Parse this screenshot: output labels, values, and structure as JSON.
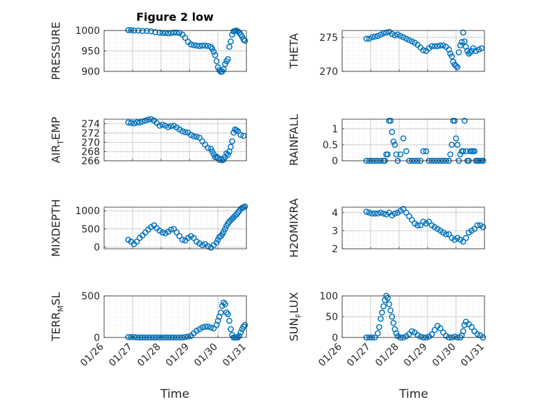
{
  "figure": {
    "title": "Figure 2 low",
    "xlabel": "Time"
  },
  "chart_data": [
    {
      "type": "scatter",
      "ylabel_parts": [
        "PRESSURE"
      ],
      "ylim": [
        900,
        1000
      ],
      "yticks": [
        "900",
        "950",
        "1000"
      ],
      "xlim": [
        0,
        5
      ],
      "xticks": [
        "01/26",
        "01/27",
        "01/28",
        "01/29",
        "01/30",
        "01/31"
      ],
      "show_xticklabels": false,
      "x": [
        0.85,
        0.95,
        1.05,
        1.2,
        1.35,
        1.5,
        1.65,
        1.8,
        1.95,
        2.05,
        2.15,
        2.25,
        2.35,
        2.45,
        2.55,
        2.65,
        2.75,
        2.85,
        2.95,
        3.05,
        3.15,
        3.25,
        3.35,
        3.45,
        3.55,
        3.65,
        3.75,
        3.8,
        3.85,
        3.9,
        3.95,
        4.0,
        4.05,
        4.1,
        4.15,
        4.2,
        4.25,
        4.3,
        4.35,
        4.4,
        4.45,
        4.5,
        4.55,
        4.6,
        4.65,
        4.7,
        4.75,
        4.8,
        4.85,
        4.9,
        4.95
      ],
      "y": [
        1001,
        1001,
        1000,
        1000,
        999,
        999,
        998,
        996,
        995,
        994,
        994,
        993,
        994,
        995,
        995,
        994,
        990,
        982,
        972,
        966,
        964,
        963,
        962,
        963,
        963,
        962,
        960,
        955,
        948,
        940,
        925,
        910,
        903,
        899,
        900,
        905,
        918,
        925,
        930,
        960,
        973,
        990,
        998,
        999,
        1000,
        998,
        995,
        990,
        985,
        978,
        975
      ]
    },
    {
      "type": "scatter",
      "ylabel_parts": [
        "THETA"
      ],
      "ylim": [
        270,
        276
      ],
      "yticks": [
        "270",
        "275"
      ],
      "xlim": [
        0,
        5
      ],
      "xticks": [
        "01/26",
        "01/27",
        "01/28",
        "01/29",
        "01/30",
        "01/31"
      ],
      "show_xticklabels": false,
      "x": [
        0.85,
        0.95,
        1.05,
        1.15,
        1.25,
        1.35,
        1.45,
        1.55,
        1.65,
        1.75,
        1.85,
        1.95,
        2.05,
        2.15,
        2.25,
        2.35,
        2.45,
        2.55,
        2.65,
        2.75,
        2.85,
        2.95,
        3.05,
        3.15,
        3.25,
        3.35,
        3.45,
        3.55,
        3.65,
        3.75,
        3.8,
        3.85,
        3.9,
        3.95,
        4.0,
        4.05,
        4.1,
        4.15,
        4.2,
        4.25,
        4.3,
        4.35,
        4.4,
        4.45,
        4.5,
        4.55,
        4.6,
        4.7,
        4.8,
        4.9
      ],
      "y": [
        274.8,
        274.8,
        275.0,
        275.1,
        275.2,
        275.4,
        275.6,
        275.7,
        275.8,
        275.5,
        275.3,
        275.4,
        275.2,
        275.0,
        274.8,
        274.6,
        274.4,
        274.2,
        273.9,
        273.5,
        273.1,
        273.0,
        273.4,
        273.7,
        273.7,
        273.7,
        273.8,
        273.8,
        273.6,
        273.2,
        272.6,
        272.2,
        271.4,
        271.0,
        270.8,
        270.6,
        272.8,
        273.8,
        274.3,
        275.7,
        274.4,
        273.6,
        273.0,
        272.6,
        272.8,
        273.0,
        273.4,
        273.0,
        273.2,
        273.4
      ]
    },
    {
      "type": "scatter",
      "ylabel_parts": [
        "AIR",
        "T",
        "EMP"
      ],
      "ylim": [
        266,
        275
      ],
      "yticks": [
        "266",
        "268",
        "270",
        "272",
        "274"
      ],
      "xlim": [
        0,
        5
      ],
      "xticks": [
        "01/26",
        "01/27",
        "01/28",
        "01/29",
        "01/30",
        "01/31"
      ],
      "show_xticklabels": false,
      "x": [
        0.85,
        0.95,
        1.05,
        1.15,
        1.25,
        1.35,
        1.45,
        1.55,
        1.65,
        1.75,
        1.85,
        1.95,
        2.05,
        2.15,
        2.25,
        2.35,
        2.45,
        2.55,
        2.65,
        2.75,
        2.85,
        2.95,
        3.05,
        3.15,
        3.25,
        3.35,
        3.45,
        3.55,
        3.65,
        3.75,
        3.8,
        3.85,
        3.9,
        3.95,
        4.0,
        4.05,
        4.1,
        4.15,
        4.2,
        4.25,
        4.3,
        4.35,
        4.4,
        4.45,
        4.5,
        4.55,
        4.6,
        4.65,
        4.7,
        4.8,
        4.9
      ],
      "y": [
        274.3,
        274.2,
        274.1,
        274.3,
        274.3,
        274.5,
        274.7,
        274.9,
        275.0,
        274.7,
        274.2,
        273.6,
        273.8,
        273.6,
        273.3,
        273.5,
        273.6,
        273.2,
        272.8,
        272.4,
        272.2,
        272.1,
        271.6,
        271.3,
        271.2,
        271.0,
        270.2,
        269.5,
        268.8,
        268.6,
        268.0,
        267.4,
        266.8,
        266.9,
        266.6,
        266.2,
        266.4,
        266.1,
        266.3,
        266.8,
        267.6,
        267.3,
        268.0,
        269.0,
        270.2,
        272.1,
        272.8,
        272.6,
        272.4,
        271.6,
        271.4
      ]
    },
    {
      "type": "scatter",
      "ylabel_parts": [
        "RAINFALL"
      ],
      "ylim": [
        0,
        1.3
      ],
      "yticks": [
        "0",
        "0.5",
        "1"
      ],
      "xlim": [
        0,
        5
      ],
      "xticks": [
        "01/26",
        "01/27",
        "01/28",
        "01/29",
        "01/30",
        "01/31"
      ],
      "show_xticklabels": false,
      "x": [
        0.85,
        0.95,
        1.05,
        1.15,
        1.25,
        1.35,
        1.45,
        1.5,
        1.55,
        1.6,
        1.65,
        1.7,
        1.75,
        1.8,
        1.85,
        1.9,
        1.95,
        2.05,
        2.15,
        2.25,
        2.35,
        2.45,
        2.55,
        2.65,
        2.75,
        2.85,
        2.95,
        3.05,
        3.15,
        3.25,
        3.35,
        3.45,
        3.55,
        3.65,
        3.75,
        3.8,
        3.85,
        3.9,
        3.95,
        4.0,
        4.05,
        4.1,
        4.15,
        4.2,
        4.25,
        4.3,
        4.35,
        4.4,
        4.45,
        4.5,
        4.55,
        4.6,
        4.65,
        4.7,
        4.75,
        4.8,
        4.85,
        4.9,
        4.95
      ],
      "y": [
        0,
        0,
        0,
        0,
        0,
        0,
        0,
        0,
        0.2,
        0.2,
        1.25,
        1.25,
        0.9,
        0.6,
        0.5,
        0.2,
        0,
        0.2,
        0.7,
        0.3,
        0,
        0,
        0,
        0,
        0,
        0.3,
        0.3,
        0,
        0,
        0,
        0,
        0,
        0,
        0,
        0,
        0.2,
        0.5,
        1.25,
        1.25,
        0.7,
        0.5,
        0,
        0.2,
        0.3,
        0.3,
        1.25,
        0.3,
        0,
        0,
        0.3,
        0.3,
        0.3,
        0.3,
        0,
        0,
        0,
        0,
        0,
        0
      ]
    },
    {
      "type": "scatter",
      "ylabel_parts": [
        "MIXDEPTH"
      ],
      "ylim": [
        -50,
        1100
      ],
      "yticks": [
        "0",
        "500",
        "1000"
      ],
      "xlim": [
        0,
        5
      ],
      "xticks": [
        "01/26",
        "01/27",
        "01/28",
        "01/29",
        "01/30",
        "01/31"
      ],
      "show_xticklabels": false,
      "x": [
        0.85,
        0.95,
        1.05,
        1.15,
        1.25,
        1.35,
        1.45,
        1.55,
        1.65,
        1.75,
        1.85,
        1.95,
        2.05,
        2.15,
        2.25,
        2.35,
        2.45,
        2.55,
        2.65,
        2.75,
        2.85,
        2.95,
        3.05,
        3.15,
        3.25,
        3.35,
        3.45,
        3.55,
        3.65,
        3.75,
        3.85,
        3.95,
        4.0,
        4.05,
        4.1,
        4.15,
        4.2,
        4.25,
        4.3,
        4.35,
        4.4,
        4.45,
        4.5,
        4.55,
        4.6,
        4.65,
        4.7,
        4.75,
        4.8,
        4.85,
        4.9,
        4.95
      ],
      "y": [
        200,
        150,
        80,
        150,
        250,
        320,
        400,
        480,
        550,
        600,
        520,
        450,
        400,
        380,
        420,
        480,
        500,
        400,
        300,
        200,
        180,
        250,
        300,
        250,
        150,
        100,
        50,
        80,
        20,
        -20,
        50,
        120,
        200,
        280,
        300,
        350,
        420,
        500,
        580,
        650,
        700,
        740,
        780,
        820,
        860,
        900,
        950,
        1000,
        1050,
        1080,
        1100,
        1120
      ]
    },
    {
      "type": "scatter",
      "ylabel_parts": [
        "H2OMIXRA"
      ],
      "ylim": [
        2,
        4.3
      ],
      "yticks": [
        "2",
        "3",
        "4"
      ],
      "xlim": [
        0,
        5
      ],
      "xticks": [
        "01/26",
        "01/27",
        "01/28",
        "01/29",
        "01/30",
        "01/31"
      ],
      "show_xticklabels": false,
      "x": [
        0.85,
        0.95,
        1.05,
        1.15,
        1.25,
        1.35,
        1.45,
        1.55,
        1.65,
        1.75,
        1.85,
        1.95,
        2.05,
        2.15,
        2.25,
        2.35,
        2.45,
        2.55,
        2.65,
        2.75,
        2.85,
        2.95,
        3.05,
        3.15,
        3.25,
        3.35,
        3.45,
        3.55,
        3.65,
        3.75,
        3.85,
        3.95,
        4.05,
        4.15,
        4.25,
        4.35,
        4.45,
        4.55,
        4.65,
        4.75,
        4.85,
        4.95
      ],
      "y": [
        4.05,
        4.0,
        3.95,
        3.95,
        3.95,
        4.0,
        3.95,
        3.9,
        4.0,
        3.85,
        3.95,
        4.0,
        4.1,
        4.2,
        4.0,
        3.8,
        3.6,
        3.4,
        3.3,
        3.3,
        3.5,
        3.4,
        3.5,
        3.3,
        3.2,
        3.1,
        3.0,
        2.9,
        2.8,
        2.8,
        2.6,
        2.5,
        2.6,
        2.5,
        2.4,
        2.6,
        2.9,
        3.0,
        3.1,
        3.3,
        3.3,
        3.2
      ]
    },
    {
      "type": "scatter",
      "ylabel_parts": [
        "TERR",
        "M",
        "SL"
      ],
      "ylim": [
        0,
        500
      ],
      "yticks": [
        "0",
        "500"
      ],
      "xlim": [
        0,
        5
      ],
      "xticks": [
        "01/26",
        "01/27",
        "01/28",
        "01/29",
        "01/30",
        "01/31"
      ],
      "show_xticklabels": true,
      "x": [
        0.85,
        0.95,
        1.05,
        1.15,
        1.25,
        1.35,
        1.45,
        1.55,
        1.65,
        1.75,
        1.85,
        1.95,
        2.05,
        2.15,
        2.25,
        2.35,
        2.45,
        2.55,
        2.65,
        2.75,
        2.85,
        2.95,
        3.05,
        3.15,
        3.25,
        3.35,
        3.45,
        3.55,
        3.65,
        3.75,
        3.85,
        3.95,
        4.0,
        4.05,
        4.1,
        4.15,
        4.2,
        4.25,
        4.3,
        4.35,
        4.4,
        4.45,
        4.5,
        4.55,
        4.6,
        4.65,
        4.7,
        4.75,
        4.8,
        4.85,
        4.9,
        4.95
      ],
      "y": [
        5,
        5,
        5,
        0,
        0,
        0,
        0,
        0,
        0,
        0,
        0,
        0,
        0,
        0,
        0,
        0,
        0,
        0,
        0,
        0,
        5,
        10,
        20,
        50,
        80,
        100,
        120,
        130,
        130,
        120,
        110,
        150,
        200,
        250,
        300,
        380,
        420,
        400,
        300,
        280,
        200,
        100,
        30,
        0,
        0,
        0,
        0,
        20,
        60,
        100,
        130,
        150
      ]
    },
    {
      "type": "scatter",
      "ylabel_parts": [
        "SUN",
        "F",
        "LUX"
      ],
      "ylim": [
        0,
        100
      ],
      "yticks": [
        "0",
        "50",
        "100"
      ],
      "xlim": [
        0,
        5
      ],
      "xticks": [
        "01/26",
        "01/27",
        "01/28",
        "01/29",
        "01/30",
        "01/31"
      ],
      "show_xticklabels": true,
      "x": [
        0.85,
        0.95,
        1.05,
        1.15,
        1.25,
        1.3,
        1.35,
        1.4,
        1.45,
        1.5,
        1.55,
        1.6,
        1.65,
        1.7,
        1.75,
        1.8,
        1.85,
        1.9,
        1.95,
        2.05,
        2.15,
        2.25,
        2.35,
        2.45,
        2.55,
        2.65,
        2.75,
        2.85,
        2.95,
        3.05,
        3.15,
        3.25,
        3.35,
        3.45,
        3.55,
        3.65,
        3.75,
        3.85,
        3.95,
        4.05,
        4.15,
        4.2,
        4.25,
        4.3,
        4.35,
        4.45,
        4.55,
        4.65,
        4.75,
        4.85,
        4.95
      ],
      "y": [
        0,
        0,
        0,
        0,
        10,
        25,
        45,
        60,
        75,
        90,
        100,
        95,
        80,
        65,
        50,
        35,
        20,
        10,
        3,
        0,
        0,
        3,
        8,
        15,
        12,
        6,
        2,
        0,
        0,
        2,
        8,
        18,
        28,
        22,
        12,
        4,
        0,
        0,
        2,
        0,
        0,
        5,
        15,
        30,
        38,
        32,
        25,
        15,
        8,
        5,
        0
      ]
    }
  ]
}
